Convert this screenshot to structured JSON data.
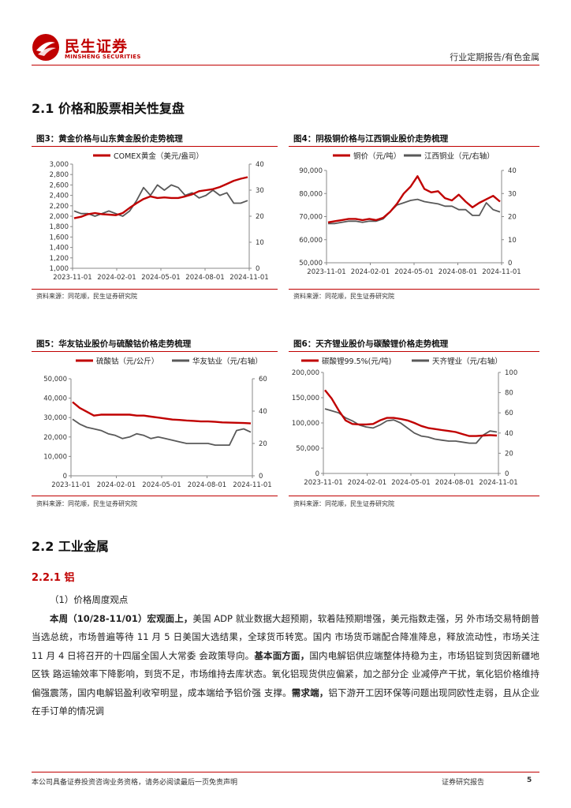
{
  "header": {
    "brand_cn": "民生证券",
    "brand_en": "MINSHENG SECURITIES",
    "report_type": "行业定期报告/有色金属"
  },
  "section_2_1": {
    "title": "2.1 价格和股票相关性复盘"
  },
  "figures": [
    {
      "title": "图3：黄金价格与山东黄金股价走势梳理",
      "source": "资料来源：同花顺，民生证券研究院"
    },
    {
      "title": "图4：阴极铜价格与江西铜业股价走势梳理",
      "source": "资料来源：同花顺，民生证券研究院"
    },
    {
      "title": "图5：华友钴业股价与硫酸钴价格走势梳理",
      "source": "资料来源：同花顺，民生证券研究院"
    },
    {
      "title": "图6：天齐锂业股价与碳酸锂价格走势梳理",
      "source": "资料来源：同花顺，民生证券研究院"
    }
  ],
  "colors": {
    "red": "#c00000",
    "gray": "#595959",
    "brand": "#c00000"
  },
  "chart_data": [
    {
      "type": "line",
      "xlabels": [
        "2023-11-01",
        "2024-02-01",
        "2024-05-01",
        "2024-08-01",
        "2024-11-01"
      ],
      "series": [
        {
          "name": "COMEX黄金（美元/盎司）",
          "color": "#c00000",
          "axis": "left",
          "values": [
            1960,
            1990,
            2040,
            2060,
            2040,
            2030,
            2020,
            2060,
            2160,
            2250,
            2330,
            2380,
            2350,
            2360,
            2350,
            2350,
            2380,
            2420,
            2480,
            2500,
            2520,
            2560,
            2620,
            2680,
            2720,
            2750
          ]
        },
        {
          "name": "",
          "color": "#595959",
          "axis": "right",
          "values": [
            22,
            21,
            21,
            20,
            21,
            22,
            21,
            20,
            22,
            26,
            31,
            28,
            32,
            30,
            32,
            31,
            28,
            29,
            27,
            28,
            30,
            28,
            29,
            25,
            25,
            26
          ]
        }
      ],
      "left": {
        "min": 1000,
        "max": 3000,
        "ticks": [
          "1,000",
          "1,200",
          "1,400",
          "1,600",
          "1,800",
          "2,000",
          "2,200",
          "2,400",
          "2,600",
          "2,800",
          "3,000"
        ]
      },
      "right": {
        "min": 0,
        "max": 40,
        "ticks": [
          "0",
          "10",
          "20",
          "30",
          "40"
        ]
      }
    },
    {
      "type": "line",
      "xlabels": [
        "2023-11-01",
        "2024-02-01",
        "2024-05-01",
        "2024-08-01",
        "2024-11-01"
      ],
      "series": [
        {
          "name": "铜价（元/吨）",
          "color": "#c00000",
          "axis": "left",
          "values": [
            67500,
            68000,
            68500,
            69000,
            69000,
            68500,
            69000,
            68500,
            69500,
            72000,
            75500,
            80000,
            83000,
            87500,
            82000,
            80500,
            81000,
            78000,
            77000,
            79500,
            76500,
            74000,
            76000,
            77500,
            79000,
            76500
          ]
        },
        {
          "name": "江西铜业（元/右轴）",
          "color": "#595959",
          "axis": "right",
          "values": [
            17,
            17,
            17.5,
            18,
            18,
            17.5,
            18,
            18,
            19,
            22,
            25,
            26,
            27,
            27.5,
            26.5,
            26,
            25.5,
            24.5,
            24.5,
            23,
            23,
            20.5,
            20.5,
            26,
            23,
            22
          ]
        }
      ],
      "left": {
        "min": 50000,
        "max": 90000,
        "ticks": [
          "50,000",
          "60,000",
          "70,000",
          "80,000",
          "90,000"
        ]
      },
      "right": {
        "min": 0,
        "max": 40,
        "ticks": [
          "0",
          "10",
          "20",
          "30",
          "40"
        ]
      }
    },
    {
      "type": "line",
      "xlabels": [
        "2023-11-01",
        "2024-02-01",
        "2024-05-01",
        "2024-08-01",
        "2024-11-01"
      ],
      "series": [
        {
          "name": "硫酸钴（元/公斤）",
          "color": "#c00000",
          "axis": "left",
          "values": [
            38000,
            35000,
            33000,
            31000,
            31500,
            31500,
            31500,
            31500,
            31500,
            31000,
            31000,
            30500,
            30000,
            29500,
            29000,
            28800,
            28500,
            28300,
            28000,
            28000,
            27800,
            27500,
            27400,
            27300,
            27200,
            27000
          ]
        },
        {
          "name": "华友钴业（元/右轴）",
          "color": "#595959",
          "axis": "right",
          "values": [
            35,
            32,
            30,
            29,
            28,
            26,
            25,
            23,
            24,
            26,
            25,
            23,
            24,
            23,
            22,
            21,
            20,
            20,
            20,
            20,
            19,
            19,
            19,
            28,
            29,
            27
          ]
        }
      ],
      "left": {
        "min": 0,
        "max": 50000,
        "ticks": [
          "0",
          "10,000",
          "20,000",
          "30,000",
          "40,000",
          "50,000"
        ]
      },
      "right": {
        "min": 0,
        "max": 60,
        "ticks": [
          "0",
          "20",
          "40",
          "60"
        ]
      }
    },
    {
      "type": "line",
      "xlabels": [
        "2023-11-01",
        "2024-02-01",
        "2024-05-01",
        "2024-08-01",
        "2024-11-01"
      ],
      "series": [
        {
          "name": "碳酸锂99.5%(元/吨)",
          "color": "#c00000",
          "axis": "left",
          "values": [
            165000,
            148000,
            125000,
            105000,
            98000,
            97000,
            97000,
            98000,
            105000,
            110000,
            110000,
            108000,
            105000,
            100000,
            94000,
            90000,
            88000,
            86000,
            84000,
            82000,
            78000,
            74000,
            74000,
            75000,
            76000,
            75000
          ]
        },
        {
          "name": "天齐锂业（元/右轴）",
          "color": "#595959",
          "axis": "right",
          "values": [
            64,
            62,
            60,
            55,
            52,
            48,
            46,
            45,
            48,
            52,
            53,
            50,
            45,
            40,
            37,
            36,
            34,
            33,
            32,
            32,
            31,
            30,
            30,
            38,
            42,
            41
          ]
        }
      ],
      "left": {
        "min": 0,
        "max": 200000,
        "ticks": [
          "0",
          "50,000",
          "100,000",
          "150,000",
          "200,000"
        ]
      },
      "right": {
        "min": 0,
        "max": 100,
        "ticks": [
          "0",
          "20",
          "40",
          "60",
          "80",
          "100"
        ]
      }
    }
  ],
  "section_2_2": {
    "title": "2.2 工业金属"
  },
  "section_2_2_1": {
    "title": "2.2.1 铝"
  },
  "subheading": "（1）价格周度观点",
  "paragraph": {
    "lead": "本周（10/28-11/01）宏观面上，",
    "part1": "美国 ADP 就业数据大超预期，软着陆预期增强，美元指数走强，另 外市场交易特朗普当选总统，市场普遍等待 11 月 5 日美国大选结果，全球货币转宽。国内 市场货币端配合降准降息，释放流动性，市场关注 11 月 4 日将召开的十四届全国人大常委 会政策导向。",
    "bold2": "基本面方面，",
    "part2": "国内电解铝供应端整体持稳为主，市场铝锭到货因新疆地区铁 路运输效率下降影响，到货不足，市场维持去库状态。氧化铝现货供应偏紧，加之部分企 业减停产干扰，氧化铝价格维持偏强震荡，国内电解铝盈利收窄明显，成本端给予铝价强 支撑。",
    "bold3": "需求端，",
    "part3": "铝下游开工因环保等问题出现同欧性走弱，且从企业在手订单的情况调"
  },
  "footer": {
    "disclaimer": "本公司具备证券投资咨询业务资格，请务必阅读最后一页免责声明",
    "label": "证券研究报告",
    "page": "5"
  }
}
